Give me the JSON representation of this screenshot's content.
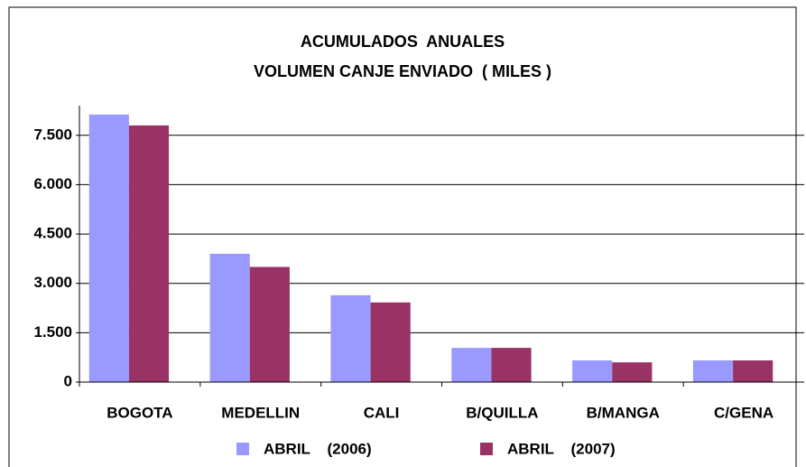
{
  "chart_data": {
    "type": "bar",
    "title": [
      "ACUMULADOS  ANUALES",
      "VOLUMEN CANJE ENVIADO  ( MILES )"
    ],
    "categories": [
      "BOGOTA",
      "MEDELLIN",
      "CALI",
      "B/QUILLA",
      "B/MANGA",
      "C/GENA"
    ],
    "series": [
      {
        "name": "ABRIL    (2006)",
        "color": "#9999ff",
        "values": [
          8130,
          3900,
          2640,
          1040,
          660,
          660
        ]
      },
      {
        "name": "ABRIL    (2007)",
        "color": "#993366",
        "values": [
          7800,
          3500,
          2420,
          1040,
          600,
          660
        ]
      }
    ],
    "ylim": [
      0,
      8400
    ],
    "yticks": [
      0,
      {
        "value": 1500,
        "label": "1.500"
      },
      {
        "value": 3000,
        "label": "3.000"
      },
      {
        "value": 4500,
        "label": "4.500"
      },
      {
        "value": 6000,
        "label": "6.000"
      },
      {
        "value": 7500,
        "label": "7.500"
      }
    ],
    "grid": true,
    "legend": "bottom"
  }
}
